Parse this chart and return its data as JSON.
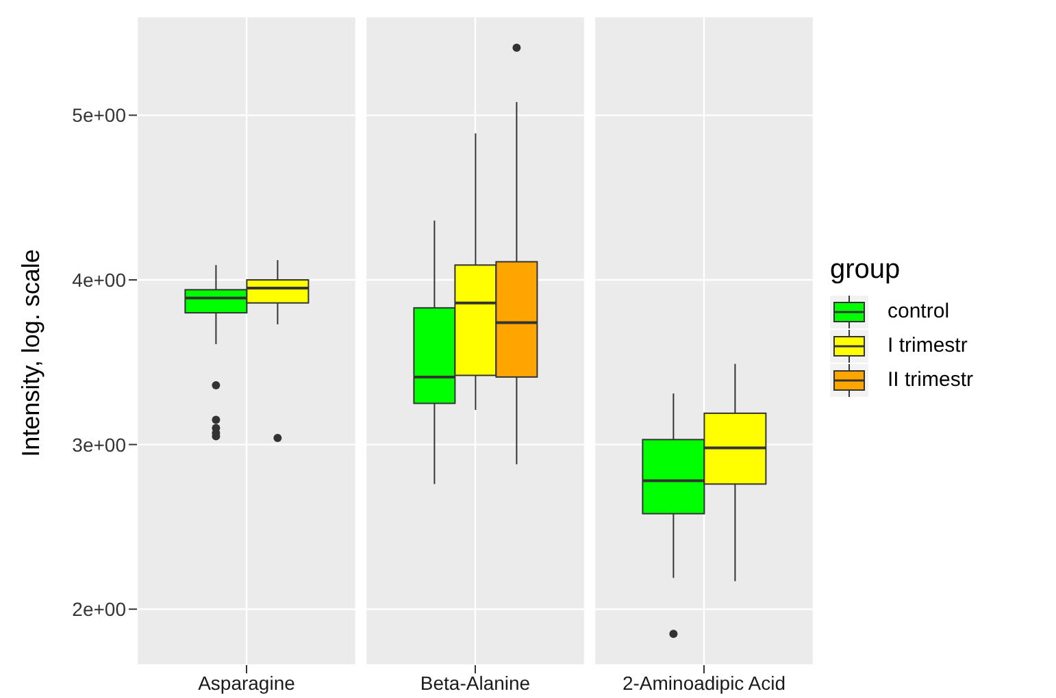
{
  "chart_data": {
    "type": "box",
    "ylabel": "Intensity, log. scale",
    "legend_title": "group",
    "legend": "right",
    "grid": true,
    "categories": [
      "Asparagine",
      "Beta-Alanine",
      "2-Aminoadipic Acid"
    ],
    "ylim": [
      1.66,
      5.6
    ],
    "yticks": [
      {
        "value": 2,
        "label": "2e+00"
      },
      {
        "value": 3,
        "label": "3e+00"
      },
      {
        "value": 4,
        "label": "4e+00"
      },
      {
        "value": 5,
        "label": "5e+00"
      }
    ],
    "series": [
      {
        "name": "control",
        "color": "#00ff00",
        "boxes": [
          {
            "low": 3.61,
            "q1": 3.8,
            "median": 3.89,
            "q3": 3.94,
            "high": 4.09,
            "outliers": [
              3.36,
              3.15,
              3.1,
              3.07,
              3.05
            ]
          },
          {
            "low": 2.76,
            "q1": 3.25,
            "median": 3.41,
            "q3": 3.83,
            "high": 4.36
          },
          {
            "low": 2.19,
            "q1": 2.58,
            "median": 2.78,
            "q3": 3.03,
            "high": 3.31,
            "outliers": [
              1.85
            ]
          }
        ]
      },
      {
        "name": "I trimestr",
        "color": "#ffff00",
        "boxes": [
          {
            "low": 3.73,
            "q1": 3.86,
            "median": 3.95,
            "q3": 4.0,
            "high": 4.12,
            "outliers": [
              3.04
            ]
          },
          {
            "low": 3.21,
            "q1": 3.42,
            "median": 3.86,
            "q3": 4.09,
            "high": 4.89
          },
          {
            "low": 2.17,
            "q1": 2.76,
            "median": 2.98,
            "q3": 3.19,
            "high": 3.49
          }
        ]
      },
      {
        "name": "II trimestr",
        "color": "#ffa500",
        "boxes": [
          null,
          {
            "low": 2.88,
            "q1": 3.41,
            "median": 3.74,
            "q3": 4.11,
            "high": 5.08,
            "outliers": [
              5.41
            ]
          },
          null
        ]
      }
    ]
  }
}
